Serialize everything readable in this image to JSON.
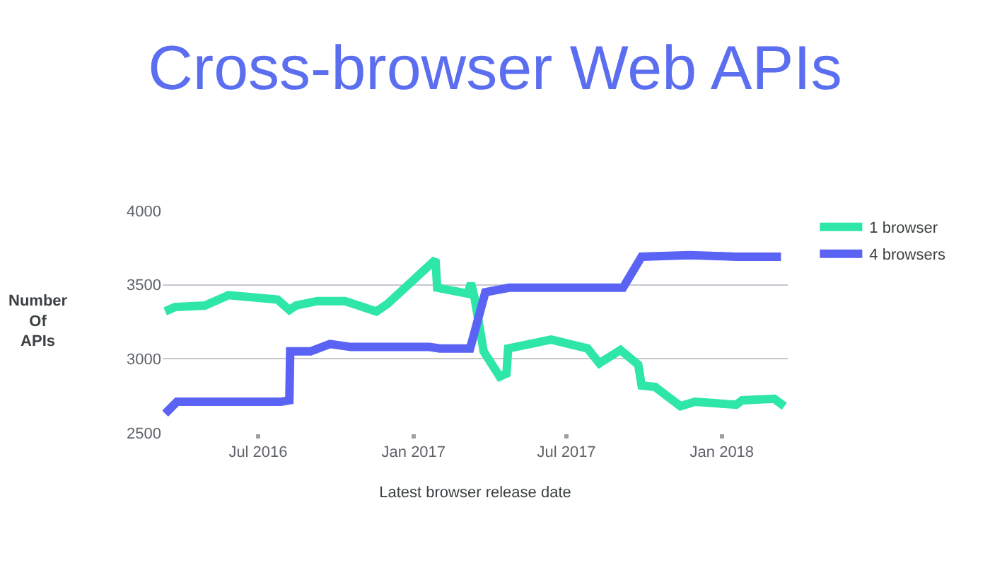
{
  "chart_data": {
    "type": "line",
    "title": "Cross-browser Web APIs",
    "xlabel": "Latest browser release date",
    "ylabel": "Number Of APIs",
    "series": [
      {
        "name": "1 browser",
        "color": "#2ee6a8",
        "x": [
          "2016-03-13",
          "2016-03-25",
          "2016-04-29",
          "2016-05-27",
          "2016-07-24",
          "2016-08-07",
          "2016-08-15",
          "2016-09-09",
          "2016-10-12",
          "2016-11-18",
          "2016-12-01",
          "2017-01-27",
          "2017-01-29",
          "2017-03-06",
          "2017-03-10",
          "2017-03-14",
          "2017-03-25",
          "2017-04-13",
          "2017-04-21",
          "2017-04-23",
          "2017-06-13",
          "2017-07-26",
          "2017-08-09",
          "2017-09-03",
          "2017-09-24",
          "2017-09-28",
          "2017-10-14",
          "2017-11-13",
          "2017-11-30",
          "2018-01-18",
          "2018-01-25",
          "2018-03-04",
          "2018-03-16"
        ],
        "values": [
          3320,
          3350,
          3360,
          3430,
          3400,
          3330,
          3360,
          3390,
          3390,
          3320,
          3370,
          3670,
          3480,
          3440,
          3510,
          3420,
          3050,
          2880,
          2900,
          3070,
          3130,
          3070,
          2970,
          3060,
          2960,
          2820,
          2810,
          2680,
          2710,
          2690,
          2720,
          2730,
          2680
        ]
      },
      {
        "name": "4 browsers",
        "color": "#5b63f5",
        "x": [
          "2016-03-13",
          "2016-03-27",
          "2016-07-28",
          "2016-08-07",
          "2016-08-08",
          "2016-09-01",
          "2016-09-24",
          "2016-10-19",
          "2017-01-20",
          "2017-02-01",
          "2017-03-06",
          "2017-03-09",
          "2017-03-27",
          "2017-04-24",
          "2017-09-06",
          "2017-09-28",
          "2017-11-25",
          "2018-01-18",
          "2018-03-12"
        ],
        "values": [
          2630,
          2710,
          2710,
          2720,
          3050,
          3050,
          3100,
          3080,
          3080,
          3070,
          3070,
          3070,
          3450,
          3480,
          3480,
          3690,
          3700,
          3690,
          3690
        ]
      }
    ],
    "xlim": [
      "2016-03-10",
      "2018-03-20"
    ],
    "xticks": [
      {
        "value": "2016-07-01",
        "label": "Jul 2016"
      },
      {
        "value": "2017-01-01",
        "label": "Jan 2017"
      },
      {
        "value": "2017-07-01",
        "label": "Jul 2017"
      },
      {
        "value": "2018-01-01",
        "label": "Jan 2018"
      }
    ],
    "ylim": [
      2500,
      4000
    ],
    "yticks": [
      2500,
      3000,
      3500,
      4000
    ],
    "grid": "y",
    "legend": "top right",
    "marker": "none",
    "line_style": "solid"
  }
}
